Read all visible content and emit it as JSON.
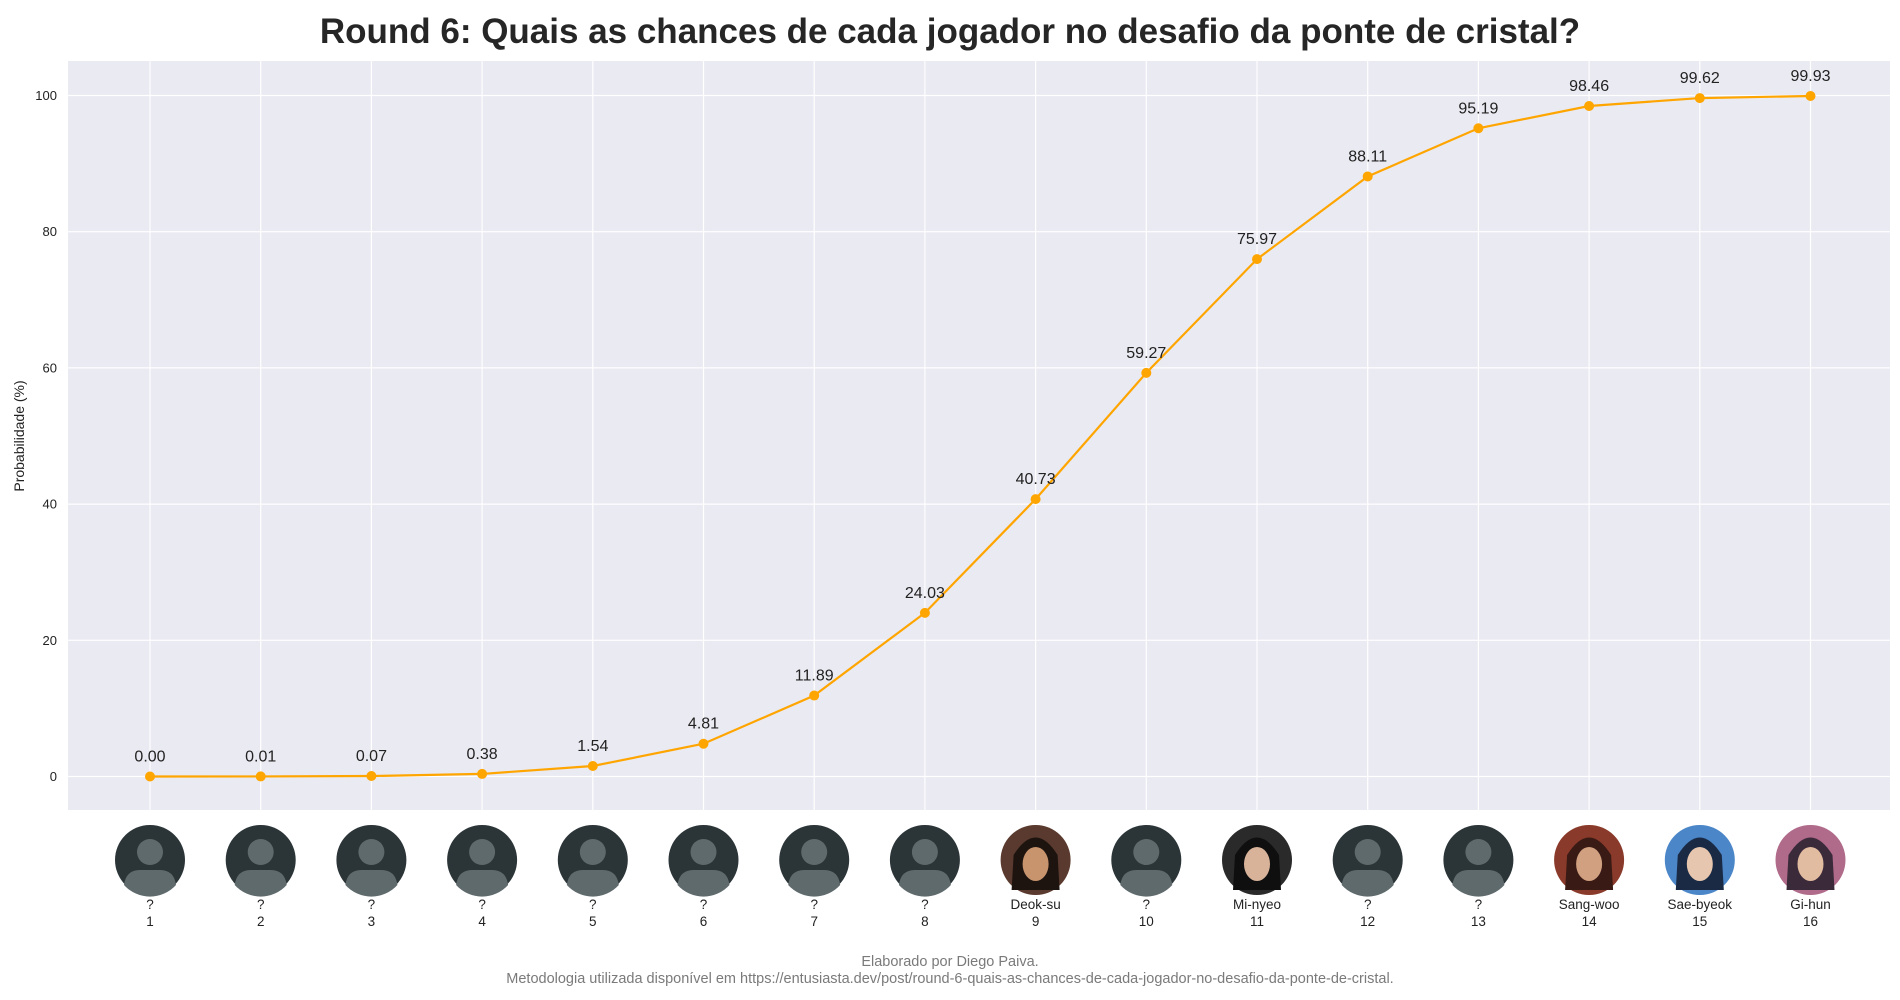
{
  "chart_data": {
    "type": "line",
    "title": "Round 6: Quais as chances de cada jogador no desafio da ponte de cristal?",
    "ylabel": "Probabilidade (%)",
    "xlabel": "",
    "ylim": [
      -5,
      105
    ],
    "yticks": [
      0,
      20,
      40,
      60,
      80,
      100
    ],
    "grid": true,
    "x": [
      1,
      2,
      3,
      4,
      5,
      6,
      7,
      8,
      9,
      10,
      11,
      12,
      13,
      14,
      15,
      16
    ],
    "values": [
      0.0,
      0.01,
      0.07,
      0.38,
      1.54,
      4.81,
      11.89,
      24.03,
      40.73,
      59.27,
      75.97,
      88.11,
      95.19,
      98.46,
      99.62,
      99.93
    ],
    "value_labels": [
      "0.00",
      "0.01",
      "0.07",
      "0.38",
      "1.54",
      "4.81",
      "11.89",
      "24.03",
      "40.73",
      "59.27",
      "75.97",
      "88.11",
      "95.19",
      "98.46",
      "99.62",
      "99.93"
    ],
    "line_color": "#FFA500",
    "background_color": "#EAEAF2",
    "players": [
      {
        "name": "?",
        "number": "1",
        "photo": "placeholder-avatar"
      },
      {
        "name": "?",
        "number": "2",
        "photo": "placeholder-avatar"
      },
      {
        "name": "?",
        "number": "3",
        "photo": "placeholder-avatar"
      },
      {
        "name": "?",
        "number": "4",
        "photo": "placeholder-avatar"
      },
      {
        "name": "?",
        "number": "5",
        "photo": "placeholder-avatar"
      },
      {
        "name": "?",
        "number": "6",
        "photo": "placeholder-avatar"
      },
      {
        "name": "?",
        "number": "7",
        "photo": "placeholder-avatar"
      },
      {
        "name": "?",
        "number": "8",
        "photo": "placeholder-avatar"
      },
      {
        "name": "Deok-su",
        "number": "9",
        "photo": "player-photo"
      },
      {
        "name": "?",
        "number": "10",
        "photo": "placeholder-avatar"
      },
      {
        "name": "Mi-nyeo",
        "number": "11",
        "photo": "player-photo"
      },
      {
        "name": "?",
        "number": "12",
        "photo": "placeholder-avatar"
      },
      {
        "name": "?",
        "number": "13",
        "photo": "placeholder-avatar"
      },
      {
        "name": "Sang-woo",
        "number": "14",
        "photo": "player-photo"
      },
      {
        "name": "Sae-byeok",
        "number": "15",
        "photo": "player-photo"
      },
      {
        "name": "Gi-hun",
        "number": "16",
        "photo": "player-photo"
      }
    ]
  },
  "footer": {
    "line1": "Elaborado por Diego Paiva.",
    "line2": "Metodologia utilizada disponível em https://entusiasta.dev/post/round-6-quais-as-chances-de-cada-jogador-no-desafio-da-ponte-de-cristal."
  }
}
